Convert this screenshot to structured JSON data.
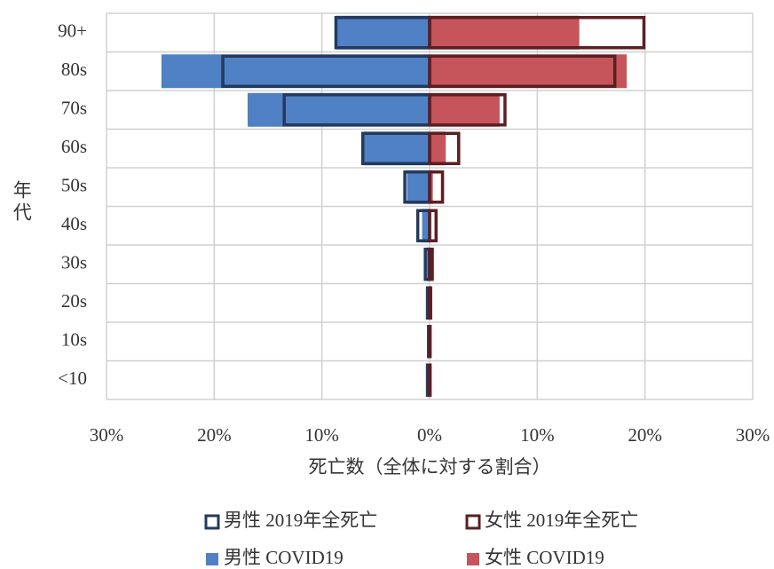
{
  "chart_data": {
    "type": "pyramid",
    "xlabel": "死亡数（全体に対する割合）",
    "ylabel": "年代",
    "categories": [
      "90+",
      "80s",
      "70s",
      "60s",
      "50s",
      "40s",
      "30s",
      "20s",
      "10s",
      "<10"
    ],
    "xlim": [
      -30,
      30
    ],
    "xticks": [
      {
        "value": -30,
        "label": "30%"
      },
      {
        "value": -20,
        "label": "20%"
      },
      {
        "value": -10,
        "label": "10%"
      },
      {
        "value": 0,
        "label": "0%"
      },
      {
        "value": 10,
        "label": "10%"
      },
      {
        "value": 20,
        "label": "20%"
      },
      {
        "value": 30,
        "label": "30%"
      }
    ],
    "grid": true,
    "series": [
      {
        "name": "男性 COVID19",
        "style": "filled",
        "color": "#4f81c4",
        "values": [
          -8.7,
          -24.9,
          -16.9,
          -6.1,
          -2.1,
          -0.7,
          -0.25,
          -0.1,
          -0.02,
          -0.02
        ]
      },
      {
        "name": "女性 COVID19",
        "style": "filled",
        "color": "#c5555a",
        "values": [
          13.9,
          18.3,
          6.5,
          1.5,
          0.3,
          0.1,
          0.05,
          0.02,
          0.01,
          0.01
        ]
      },
      {
        "name": "男性 2019年全死亡",
        "style": "outline",
        "color": "#243a5e",
        "values": [
          -8.7,
          -19.2,
          -13.5,
          -6.2,
          -2.3,
          -1.1,
          -0.4,
          -0.2,
          -0.1,
          -0.2
        ]
      },
      {
        "name": "女性 2019年全死亡",
        "style": "outline",
        "color": "#5c1f22",
        "values": [
          19.9,
          17.2,
          7.0,
          2.7,
          1.2,
          0.6,
          0.25,
          0.1,
          0.05,
          0.05
        ]
      }
    ],
    "legend_order": [
      2,
      3,
      0,
      1
    ]
  }
}
